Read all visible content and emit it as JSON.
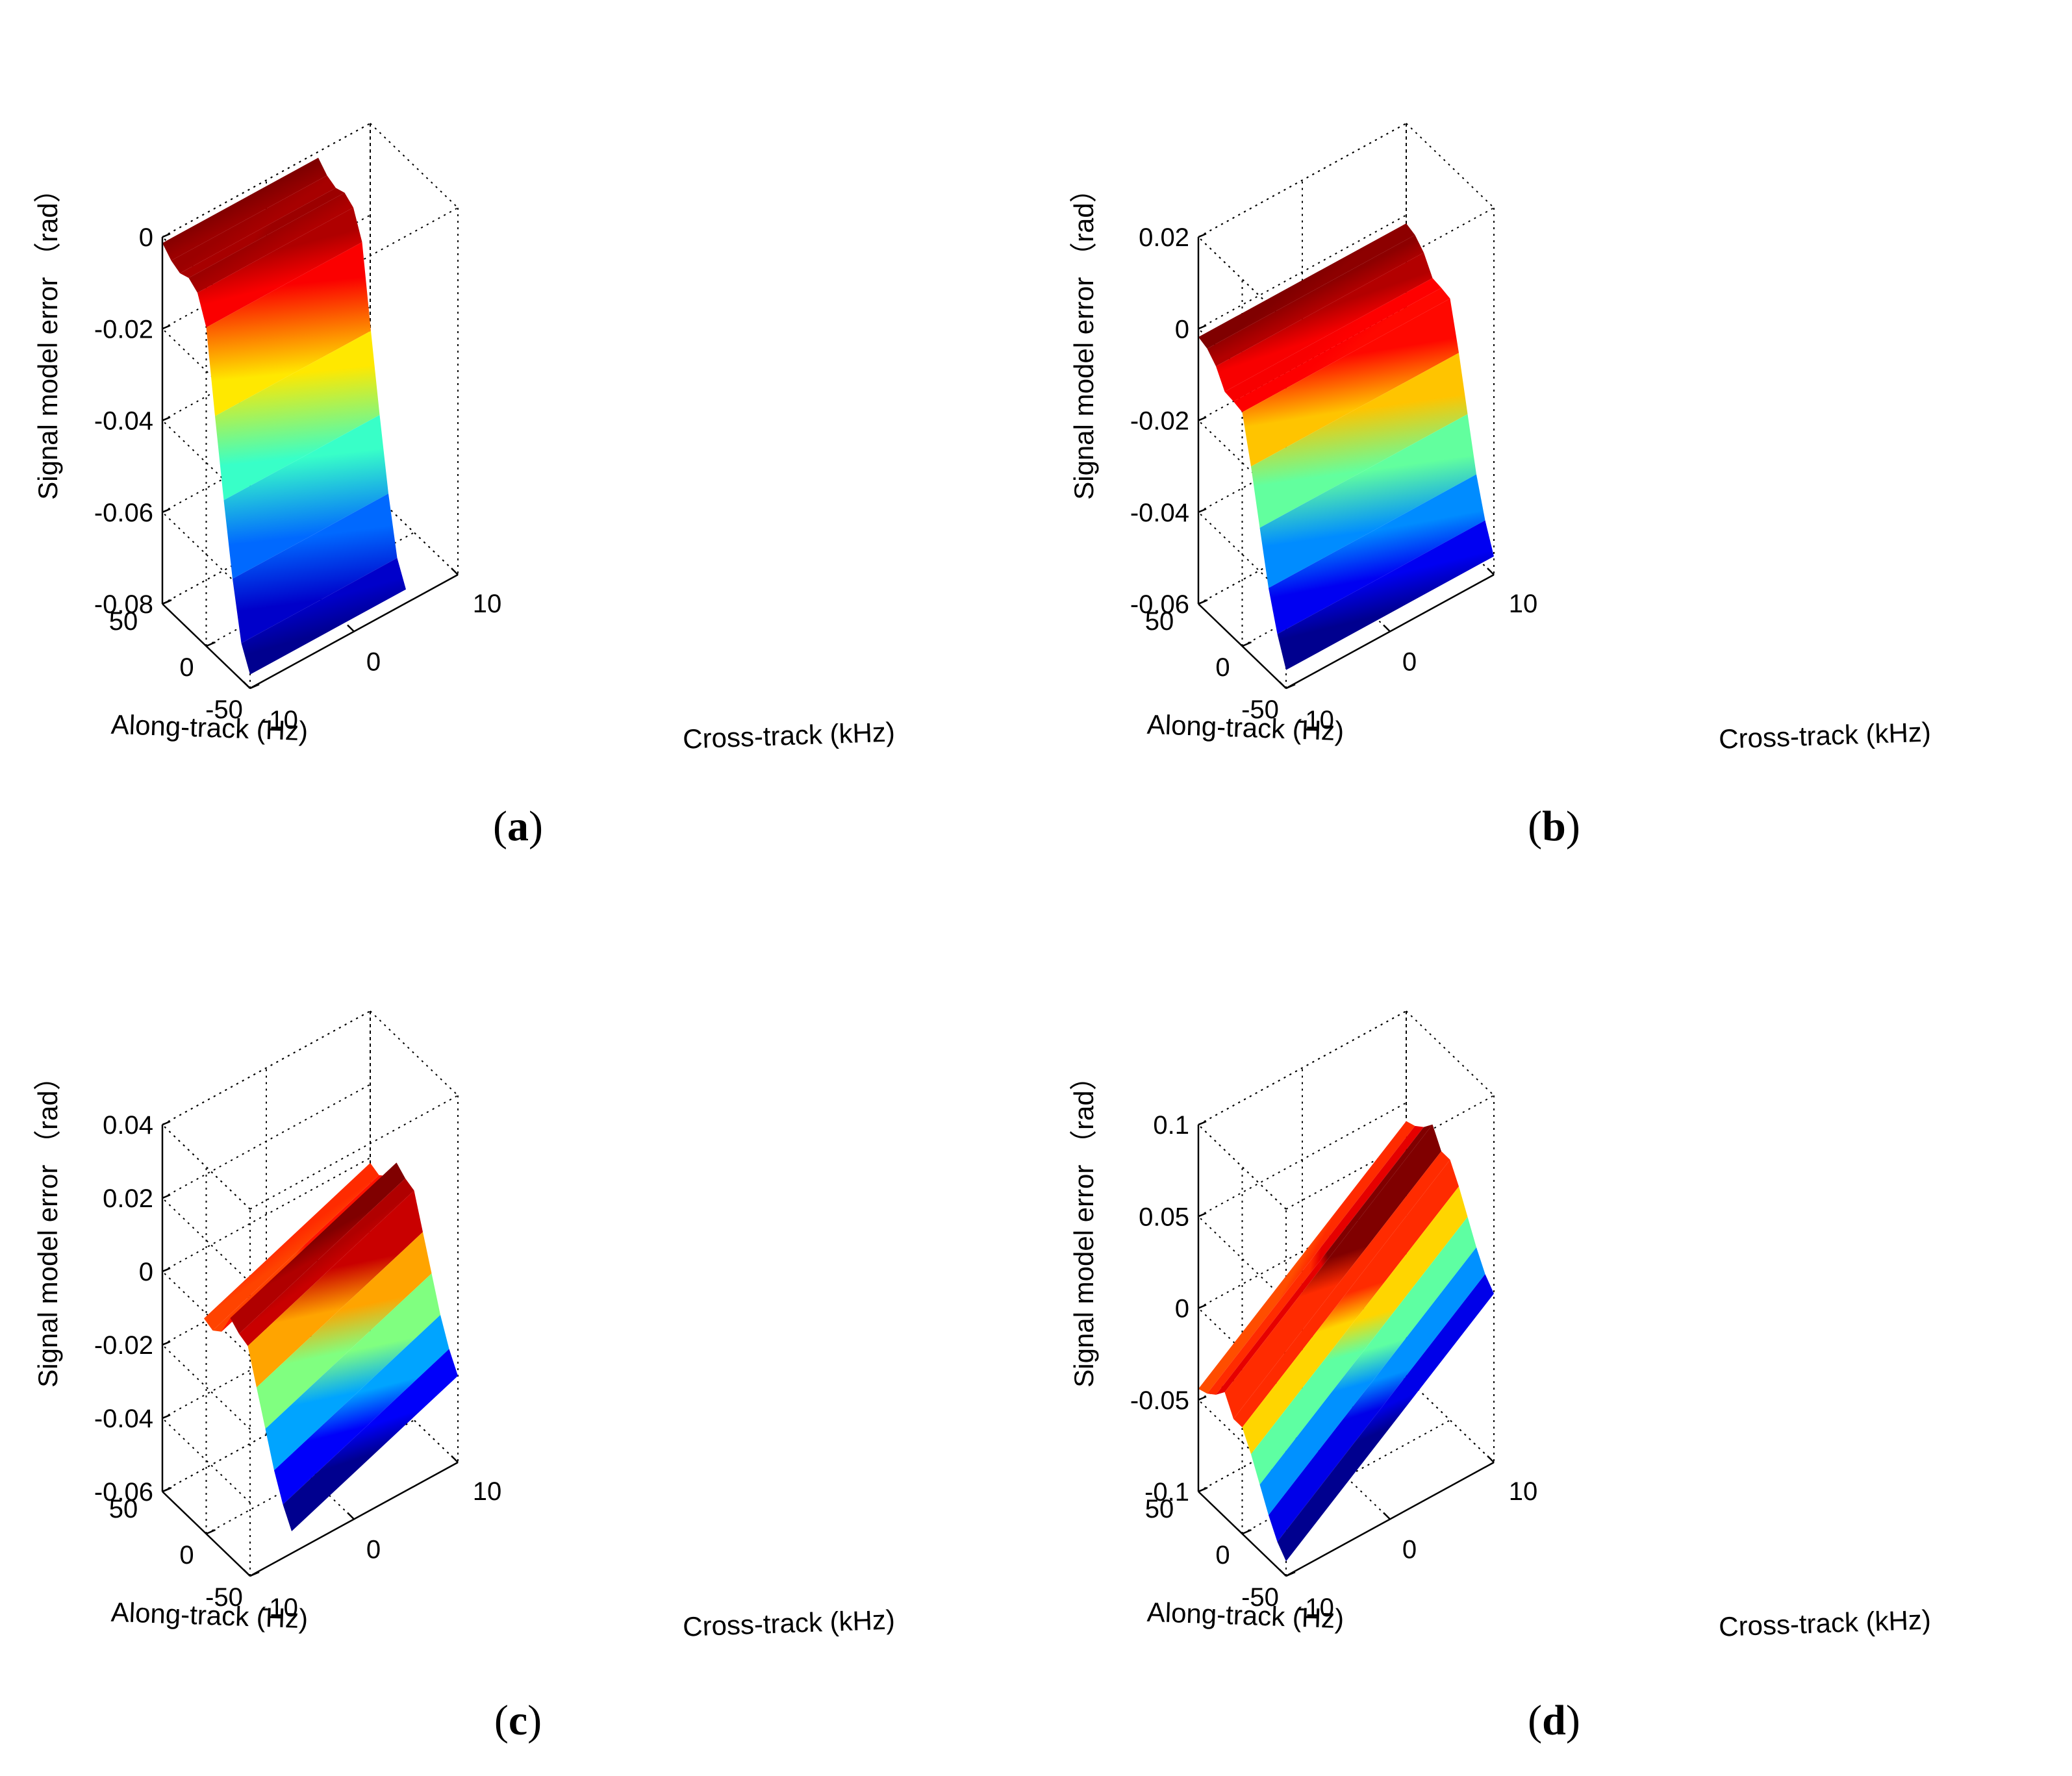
{
  "figure": {
    "panel_count": 4
  },
  "colors": {
    "background": "#ffffff",
    "axis_line": "#000000",
    "grid_line": "#000000",
    "colormap": [
      "#00008f",
      "#0000ff",
      "#0080ff",
      "#00ffff",
      "#80ff80",
      "#ffff00",
      "#ff8000",
      "#ff0000",
      "#800000"
    ]
  },
  "chart_data": [
    {
      "type": "surface",
      "panel_label": "a",
      "caption_open": "(",
      "caption_close": ")",
      "xlabel": "Cross-track (kHz)",
      "ylabel": "Along-track (Hz)",
      "zlabel": "Signal model error （rad）",
      "xlim": [
        -10,
        10
      ],
      "ylim": [
        -50,
        50
      ],
      "zlim": [
        -0.08,
        0
      ],
      "x_ticks": [
        "-10",
        "0",
        "10"
      ],
      "y_ticks": [
        "50",
        "0",
        "-50"
      ],
      "z_ticks": [
        "-0.08",
        "-0.06",
        "-0.04",
        "-0.02",
        "0"
      ],
      "along_profile": {
        "along_track_hz": [
          50,
          40,
          30,
          20,
          10,
          0,
          -10,
          -20,
          -30,
          -40,
          -50
        ],
        "error_rad": [
          -0.0013,
          -0.0033,
          -0.0042,
          -0.0034,
          -0.0048,
          -0.0105,
          -0.028,
          -0.0445,
          -0.0598,
          -0.072,
          -0.077
        ]
      },
      "cross_track_extent_khz": [
        -10,
        5
      ],
      "cross_track_slope_rad_per_khz": 0,
      "coloring": "along"
    },
    {
      "type": "surface",
      "panel_label": "b",
      "caption_open": "(",
      "caption_close": ")",
      "xlabel": "Cross-track (kHz)",
      "ylabel": "Along-track (Hz)",
      "zlabel": "Signal model error （rad）",
      "xlim": [
        -10,
        10
      ],
      "ylim": [
        -50,
        50
      ],
      "zlim": [
        -0.06,
        0.02
      ],
      "x_ticks": [
        "-10",
        "0",
        "10"
      ],
      "y_ticks": [
        "50",
        "0",
        "-50"
      ],
      "z_ticks": [
        "-0.06",
        "-0.04",
        "-0.02",
        "0",
        "0.02"
      ],
      "along_profile": {
        "along_track_hz": [
          50,
          40,
          30,
          20,
          10,
          0,
          -10,
          -20,
          -30,
          -40,
          -50
        ],
        "error_rad": [
          -0.0018,
          -0.0025,
          -0.0045,
          -0.0082,
          -0.0085,
          -0.009,
          -0.019,
          -0.0305,
          -0.0418,
          -0.05,
          -0.056
        ]
      },
      "cross_track_extent_khz": [
        -10,
        10
      ],
      "cross_track_slope_rad_per_khz": 0,
      "coloring": "along"
    },
    {
      "type": "surface",
      "panel_label": "c",
      "caption_open": "(",
      "caption_close": ")",
      "xlabel": "Cross-track (kHz)",
      "ylabel": "Along-track (Hz)",
      "zlabel": "Signal model error （rad）",
      "xlim": [
        -10,
        10
      ],
      "ylim": [
        -50,
        50
      ],
      "zlim": [
        -0.06,
        0.04
      ],
      "x_ticks": [
        "-10",
        "0",
        "10"
      ],
      "y_ticks": [
        "50",
        "0",
        "-50"
      ],
      "z_ticks": [
        "-0.06",
        "-0.04",
        "-0.02",
        "0",
        "0.02",
        "0.04"
      ],
      "along_profile": {
        "along_track_hz": [
          50,
          40,
          30,
          20,
          10,
          0,
          -10,
          -20,
          -30,
          -40,
          -50
        ],
        "error_rad": [
          -0.019,
          -0.02,
          -0.018,
          -0.012,
          -0.014,
          -0.015,
          -0.024,
          -0.033,
          -0.042,
          -0.049,
          -0.054
        ]
      },
      "cross_track_extent_khz": [
        -6,
        10
      ],
      "cross_track_slope_rad_per_khz": 0.0011,
      "coloring": "along"
    },
    {
      "type": "surface",
      "panel_label": "d",
      "caption_open": "(",
      "caption_close": ")",
      "xlabel": "Cross-track (kHz)",
      "ylabel": "Along-track (Hz)",
      "zlabel": "Signal model error （rad）",
      "xlim": [
        -10,
        10
      ],
      "ylim": [
        -50,
        50
      ],
      "zlim": [
        -0.1,
        0.1
      ],
      "x_ticks": [
        "-10",
        "0",
        "10"
      ],
      "y_ticks": [
        "50",
        "0",
        "-50"
      ],
      "z_ticks": [
        "-0.1",
        "-0.05",
        "0",
        "0.05",
        "0.1"
      ],
      "along_profile": {
        "along_track_hz": [
          50,
          40,
          30,
          20,
          10,
          0,
          -10,
          -20,
          -30,
          -40,
          -50
        ],
        "error_rad": [
          -0.044,
          -0.042,
          -0.038,
          -0.032,
          -0.042,
          -0.042,
          -0.052,
          -0.064,
          -0.076,
          -0.086,
          -0.092
        ]
      },
      "cross_track_extent_khz": [
        -10,
        10
      ],
      "cross_track_slope_rad_per_khz": 0.0042,
      "coloring": "along"
    }
  ]
}
